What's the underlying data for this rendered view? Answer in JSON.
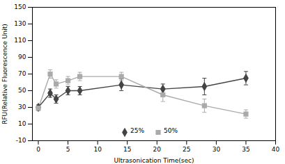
{
  "chart_data": {
    "type": "line",
    "xlabel": "Ultrasonication Time(sec)",
    "ylabel": "RFU(Relative Fluorescence Unit)",
    "x": [
      0,
      2,
      3,
      5,
      7,
      14,
      21,
      28,
      35
    ],
    "series": [
      {
        "name": "25%",
        "color": "#444444",
        "marker": "diamond",
        "values": [
          30,
          47,
          40,
          50,
          50,
          57,
          52,
          55,
          65
        ],
        "yerr": [
          3,
          5,
          5,
          5,
          5,
          7,
          6,
          10,
          8
        ]
      },
      {
        "name": "50%",
        "color": "#aaaaaa",
        "marker": "square",
        "values": [
          29,
          70,
          58,
          62,
          67,
          67,
          45,
          32,
          22
        ],
        "yerr": [
          3,
          5,
          5,
          5,
          5,
          5,
          8,
          8,
          5
        ]
      }
    ],
    "xlim": [
      -1,
      40
    ],
    "xticks": [
      0,
      5,
      10,
      15,
      20,
      25,
      30,
      35,
      40
    ],
    "ylim": [
      -10,
      150
    ],
    "yticks": [
      -10,
      10,
      30,
      50,
      70,
      90,
      110,
      130,
      150
    ],
    "legend": "lower center",
    "grid": false
  }
}
